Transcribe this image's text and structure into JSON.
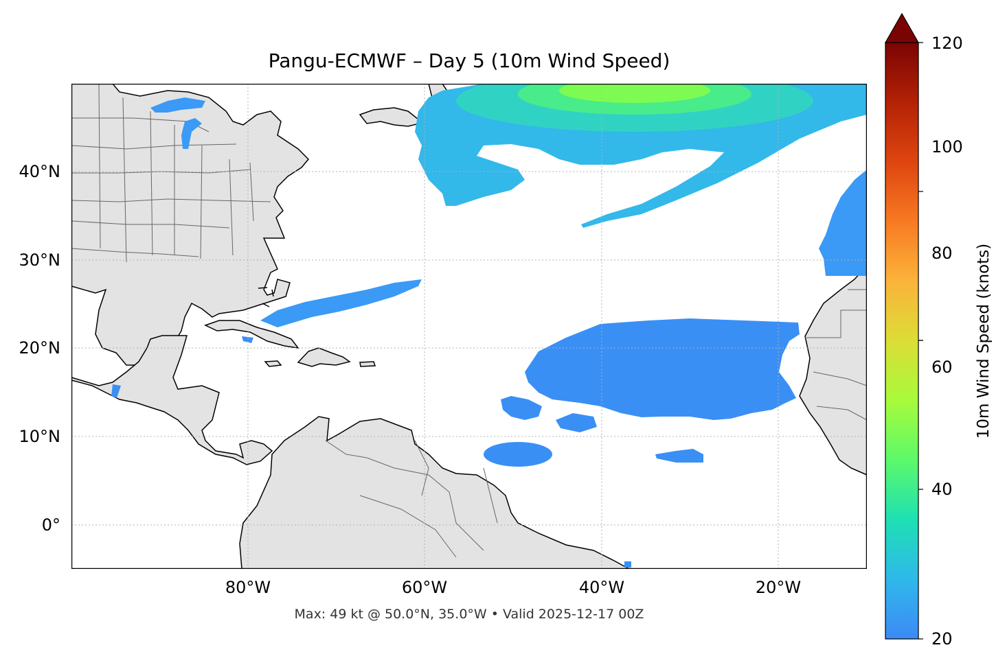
{
  "title": "Pangu-ECMWF – Day 5 (10m Wind Speed)",
  "footer": "Max: 49 kt @ 50.0°N, 35.0°W • Valid 2025-12-17 00Z",
  "map": {
    "lon_range": [
      -100,
      -10
    ],
    "lat_range": [
      -5,
      50
    ],
    "lon_ticks": [
      "80°W",
      "60°W",
      "40°W",
      "20°W"
    ],
    "lat_ticks": [
      "40°N",
      "30°N",
      "20°N",
      "10°N",
      "0°"
    ],
    "land_color": "#e3e3e3",
    "coast_color": "#000000",
    "border_color": "#666666",
    "grid": "dotted"
  },
  "colorbar": {
    "label": "10m Wind Speed (knots)",
    "min": 20,
    "max": 120,
    "ticks": [
      "20",
      "40",
      "60",
      "80",
      "100",
      "120"
    ],
    "extend": "max",
    "colormap": "turbo"
  },
  "max_wind": {
    "value_kt": 49,
    "lat": 50.0,
    "lon": -35.0
  }
}
